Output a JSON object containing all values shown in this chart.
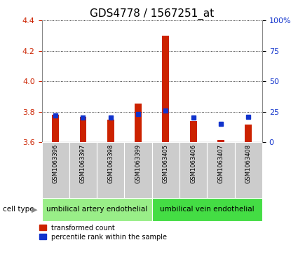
{
  "title": "GDS4778 / 1567251_at",
  "samples": [
    "GSM1063396",
    "GSM1063397",
    "GSM1063398",
    "GSM1063399",
    "GSM1063405",
    "GSM1063406",
    "GSM1063407",
    "GSM1063408"
  ],
  "transformed_counts": [
    3.78,
    3.765,
    3.75,
    3.855,
    4.3,
    3.74,
    3.615,
    3.715
  ],
  "percentile_ranks": [
    22,
    20,
    20,
    23,
    26,
    20,
    15,
    21
  ],
  "ylim_left": [
    3.6,
    4.4
  ],
  "ylim_right": [
    0,
    100
  ],
  "yticks_left": [
    3.6,
    3.8,
    4.0,
    4.2,
    4.4
  ],
  "yticks_right": [
    0,
    25,
    50,
    75,
    100
  ],
  "bar_color_red": "#CC2200",
  "bar_color_blue": "#1133CC",
  "baseline": 3.6,
  "cell_types": [
    {
      "label": "umbilical artery endothelial",
      "samples": [
        0,
        1,
        2,
        3
      ],
      "color": "#99EE88"
    },
    {
      "label": "umbilical vein endothelial",
      "samples": [
        4,
        5,
        6,
        7
      ],
      "color": "#44DD44"
    }
  ],
  "cell_type_label": "cell type",
  "legend_red": "transformed count",
  "legend_blue": "percentile rank within the sample",
  "title_fontsize": 11,
  "tick_fontsize": 8,
  "bar_width": 0.25
}
